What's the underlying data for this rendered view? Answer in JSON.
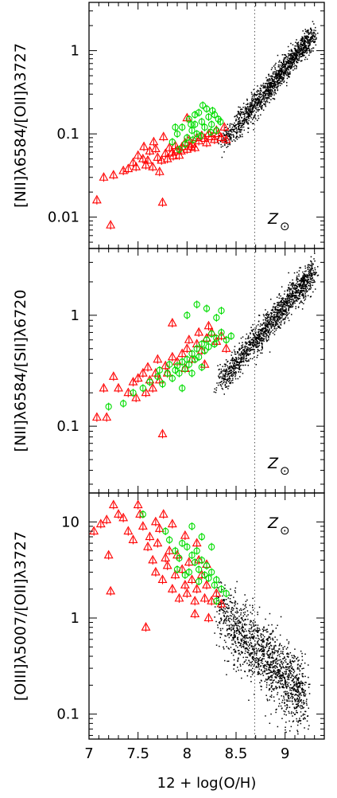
{
  "figure": {
    "xlabel": "12 + log(O/H)",
    "solar_label": "Z",
    "solar_symbol": "⊙",
    "colors": {
      "axes": "#000000",
      "sdss": "#000000",
      "red_series": "#ff0000",
      "green_series": "#00dd00",
      "solar_line": "#555555"
    }
  },
  "chart_data": [
    {
      "type": "scatter",
      "ylabel": "[NII]λ6584/[OII]λ3727",
      "yscale": "log",
      "xlim": [
        7.0,
        9.4
      ],
      "ylim": [
        0.0042,
        3.8
      ],
      "xticks": [
        7,
        7.5,
        8,
        8.5,
        9
      ],
      "xtick_labels": [
        "7",
        "7.5",
        "8",
        "8.5",
        "9"
      ],
      "yticks": [
        0.01,
        0.1,
        1
      ],
      "ytick_labels": [
        "0.01",
        "0.1",
        "1"
      ],
      "solar_line_x": 8.69,
      "cloud": {
        "x_range": [
          8.35,
          9.28
        ],
        "y_at_start": 0.075,
        "y_at_end": 1.6,
        "scatter_dex": 0.07
      },
      "series": [
        {
          "marker": "triangle",
          "points": [
            [
              7.08,
              0.016
            ],
            [
              7.22,
              0.008
            ],
            [
              7.15,
              0.03
            ],
            [
              7.25,
              0.032
            ],
            [
              7.4,
              0.038
            ],
            [
              7.45,
              0.045
            ],
            [
              7.5,
              0.055
            ],
            [
              7.55,
              0.05
            ],
            [
              7.6,
              0.048
            ],
            [
              7.62,
              0.062
            ],
            [
              7.65,
              0.04
            ],
            [
              7.7,
              0.052
            ],
            [
              7.72,
              0.035
            ],
            [
              7.75,
              0.015
            ],
            [
              7.78,
              0.058
            ],
            [
              7.8,
              0.05
            ],
            [
              7.82,
              0.068
            ],
            [
              7.85,
              0.06
            ],
            [
              7.88,
              0.072
            ],
            [
              7.9,
              0.064
            ],
            [
              7.92,
              0.055
            ],
            [
              7.95,
              0.07
            ],
            [
              7.98,
              0.078
            ],
            [
              8.0,
              0.065
            ],
            [
              8.02,
              0.085
            ],
            [
              8.05,
              0.075
            ],
            [
              8.08,
              0.068
            ],
            [
              8.1,
              0.09
            ],
            [
              8.12,
              0.082
            ],
            [
              8.15,
              0.095
            ],
            [
              8.18,
              0.088
            ],
            [
              8.2,
              0.078
            ],
            [
              8.22,
              0.1
            ],
            [
              8.25,
              0.092
            ],
            [
              8.28,
              0.085
            ],
            [
              8.3,
              0.11
            ],
            [
              8.32,
              0.1
            ],
            [
              8.35,
              0.09
            ],
            [
              8.38,
              0.12
            ],
            [
              8.4,
              0.085
            ],
            [
              7.58,
              0.042
            ],
            [
              7.68,
              0.066
            ],
            [
              7.74,
              0.048
            ],
            [
              7.86,
              0.054
            ],
            [
              7.94,
              0.062
            ],
            [
              8.04,
              0.07
            ],
            [
              7.56,
              0.07
            ],
            [
              7.48,
              0.04
            ],
            [
              7.35,
              0.036
            ],
            [
              7.66,
              0.08
            ],
            [
              7.76,
              0.092
            ],
            [
              8.0,
              0.155
            ]
          ]
        },
        {
          "marker": "circle",
          "points": [
            [
              7.85,
              0.08
            ],
            [
              7.9,
              0.1
            ],
            [
              7.95,
              0.12
            ],
            [
              8.0,
              0.09
            ],
            [
              8.02,
              0.15
            ],
            [
              8.05,
              0.11
            ],
            [
              8.08,
              0.13
            ],
            [
              8.1,
              0.1
            ],
            [
              8.12,
              0.18
            ],
            [
              8.15,
              0.14
            ],
            [
              8.18,
              0.12
            ],
            [
              8.2,
              0.2
            ],
            [
              8.22,
              0.16
            ],
            [
              8.25,
              0.13
            ],
            [
              8.28,
              0.17
            ],
            [
              8.3,
              0.11
            ],
            [
              8.32,
              0.15
            ],
            [
              7.98,
              0.075
            ],
            [
              8.06,
              0.085
            ],
            [
              8.14,
              0.095
            ],
            [
              8.24,
              0.105
            ],
            [
              7.92,
              0.065
            ],
            [
              8.16,
              0.22
            ],
            [
              8.08,
              0.17
            ],
            [
              8.26,
              0.19
            ],
            [
              8.34,
              0.14
            ],
            [
              7.88,
              0.12
            ],
            [
              8.04,
              0.13
            ]
          ]
        }
      ]
    },
    {
      "type": "scatter",
      "ylabel": "[NII]λ6584/[SII]λ6720",
      "yscale": "log",
      "xlim": [
        7.0,
        9.4
      ],
      "ylim": [
        0.025,
        4.0
      ],
      "xticks": [
        7,
        7.5,
        8,
        8.5,
        9
      ],
      "xtick_labels": [
        "7",
        "7.5",
        "8",
        "8.5",
        "9"
      ],
      "yticks": [
        0.1,
        1
      ],
      "ytick_labels": [
        "0.1",
        "1"
      ],
      "solar_line_x": 8.69,
      "cloud": {
        "x_range": [
          8.3,
          9.28
        ],
        "y_at_start": 0.23,
        "y_at_end": 2.5,
        "scatter_dex": 0.06
      },
      "series": [
        {
          "marker": "triangle",
          "points": [
            [
              7.08,
              0.12
            ],
            [
              7.18,
              0.12
            ],
            [
              7.15,
              0.22
            ],
            [
              7.25,
              0.28
            ],
            [
              7.3,
              0.22
            ],
            [
              7.4,
              0.2
            ],
            [
              7.45,
              0.25
            ],
            [
              7.5,
              0.27
            ],
            [
              7.55,
              0.3
            ],
            [
              7.6,
              0.34
            ],
            [
              7.62,
              0.26
            ],
            [
              7.65,
              0.22
            ],
            [
              7.68,
              0.3
            ],
            [
              7.7,
              0.4
            ],
            [
              7.72,
              0.26
            ],
            [
              7.75,
              0.085
            ],
            [
              7.78,
              0.35
            ],
            [
              7.8,
              0.3
            ],
            [
              7.85,
              0.42
            ],
            [
              7.9,
              0.38
            ],
            [
              7.95,
              0.45
            ],
            [
              8.0,
              0.5
            ],
            [
              8.02,
              0.6
            ],
            [
              8.05,
              0.4
            ],
            [
              8.1,
              0.55
            ],
            [
              8.12,
              0.7
            ],
            [
              8.15,
              0.48
            ],
            [
              8.2,
              0.62
            ],
            [
              8.22,
              0.8
            ],
            [
              8.25,
              0.7
            ],
            [
              8.3,
              0.58
            ],
            [
              8.35,
              0.65
            ],
            [
              8.4,
              0.5
            ],
            [
              7.85,
              0.85
            ],
            [
              7.58,
              0.2
            ],
            [
              7.48,
              0.18
            ],
            [
              7.98,
              0.33
            ],
            [
              8.18,
              0.36
            ]
          ]
        },
        {
          "marker": "circle",
          "points": [
            [
              7.2,
              0.15
            ],
            [
              7.35,
              0.16
            ],
            [
              7.45,
              0.2
            ],
            [
              7.55,
              0.22
            ],
            [
              7.62,
              0.25
            ],
            [
              7.7,
              0.28
            ],
            [
              7.75,
              0.24
            ],
            [
              7.8,
              0.3
            ],
            [
              7.85,
              0.27
            ],
            [
              7.88,
              0.32
            ],
            [
              7.9,
              0.35
            ],
            [
              7.92,
              0.3
            ],
            [
              7.95,
              0.38
            ],
            [
              7.98,
              0.33
            ],
            [
              8.0,
              0.4
            ],
            [
              8.02,
              0.36
            ],
            [
              8.05,
              0.45
            ],
            [
              8.08,
              0.4
            ],
            [
              8.1,
              0.5
            ],
            [
              8.12,
              0.42
            ],
            [
              8.15,
              0.55
            ],
            [
              8.18,
              0.48
            ],
            [
              8.2,
              0.6
            ],
            [
              8.22,
              0.52
            ],
            [
              8.25,
              0.68
            ],
            [
              8.28,
              0.55
            ],
            [
              8.3,
              0.62
            ],
            [
              8.35,
              0.7
            ],
            [
              8.4,
              0.6
            ],
            [
              8.45,
              0.65
            ],
            [
              8.1,
              1.25
            ],
            [
              8.2,
              1.15
            ],
            [
              8.35,
              1.1
            ],
            [
              8.3,
              0.95
            ],
            [
              8.0,
              1.0
            ],
            [
              7.95,
              0.22
            ],
            [
              8.05,
              0.3
            ],
            [
              8.15,
              0.34
            ],
            [
              7.82,
              0.36
            ],
            [
              7.72,
              0.32
            ]
          ]
        }
      ]
    },
    {
      "type": "scatter",
      "ylabel": "[OIII]λ5007/[OII]λ3727",
      "yscale": "log",
      "xlim": [
        7.0,
        9.4
      ],
      "ylim": [
        0.055,
        20.0
      ],
      "xticks": [
        7,
        7.5,
        8,
        8.5,
        9
      ],
      "xtick_labels": [
        "7",
        "7.5",
        "8",
        "8.5",
        "9"
      ],
      "yticks": [
        0.1,
        1,
        10
      ],
      "ytick_labels": [
        "0.1",
        "1",
        "10"
      ],
      "solar_line_x": 8.69,
      "cloud": {
        "x_range": [
          8.3,
          9.2
        ],
        "y_at_start": 1.2,
        "y_at_end": 0.15,
        "scatter_dex": 0.18
      },
      "series": [
        {
          "marker": "triangle",
          "points": [
            [
              7.05,
              8.0
            ],
            [
              7.12,
              9.5
            ],
            [
              7.18,
              10.5
            ],
            [
              7.25,
              15.0
            ],
            [
              7.3,
              12.0
            ],
            [
              7.35,
              11.0
            ],
            [
              7.2,
              4.5
            ],
            [
              7.22,
              1.9
            ],
            [
              7.4,
              8.0
            ],
            [
              7.45,
              6.5
            ],
            [
              7.5,
              15.0
            ],
            [
              7.52,
              12.0
            ],
            [
              7.55,
              9.0
            ],
            [
              7.58,
              0.8
            ],
            [
              7.6,
              5.5
            ],
            [
              7.62,
              7.0
            ],
            [
              7.65,
              4.0
            ],
            [
              7.68,
              3.0
            ],
            [
              7.7,
              6.0
            ],
            [
              7.72,
              8.5
            ],
            [
              7.75,
              2.5
            ],
            [
              7.78,
              4.2
            ],
            [
              7.8,
              3.5
            ],
            [
              7.82,
              5.0
            ],
            [
              7.85,
              2.0
            ],
            [
              7.88,
              2.8
            ],
            [
              7.9,
              4.5
            ],
            [
              7.92,
              1.6
            ],
            [
              7.95,
              3.2
            ],
            [
              7.98,
              2.2
            ],
            [
              8.0,
              1.8
            ],
            [
              8.02,
              3.8
            ],
            [
              8.05,
              2.5
            ],
            [
              8.08,
              1.5
            ],
            [
              8.1,
              2.0
            ],
            [
              8.12,
              4.0
            ],
            [
              8.15,
              2.8
            ],
            [
              8.18,
              1.6
            ],
            [
              8.2,
              2.2
            ],
            [
              8.25,
              1.5
            ],
            [
              8.3,
              1.8
            ],
            [
              8.35,
              1.4
            ],
            [
              7.76,
              12.0
            ],
            [
              8.08,
              1.1
            ],
            [
              8.22,
              1.0
            ],
            [
              7.85,
              9.5
            ],
            [
              7.98,
              7.2
            ],
            [
              8.1,
              6.0
            ],
            [
              8.2,
              3.6
            ],
            [
              7.68,
              10.0
            ]
          ]
        },
        {
          "marker": "circle",
          "points": [
            [
              7.55,
              12.0
            ],
            [
              7.78,
              8.0
            ],
            [
              7.82,
              6.5
            ],
            [
              7.88,
              5.0
            ],
            [
              7.92,
              4.2
            ],
            [
              7.95,
              6.0
            ],
            [
              8.0,
              5.5
            ],
            [
              8.02,
              3.0
            ],
            [
              8.05,
              4.5
            ],
            [
              8.08,
              3.8
            ],
            [
              8.1,
              5.0
            ],
            [
              8.12,
              3.2
            ],
            [
              8.15,
              4.0
            ],
            [
              8.18,
              2.8
            ],
            [
              8.2,
              3.5
            ],
            [
              8.22,
              2.6
            ],
            [
              8.25,
              3.0
            ],
            [
              8.28,
              2.2
            ],
            [
              8.3,
              2.5
            ],
            [
              8.35,
              2.0
            ],
            [
              8.4,
              1.8
            ],
            [
              8.05,
              9.0
            ],
            [
              8.15,
              7.0
            ],
            [
              8.25,
              5.5
            ],
            [
              8.3,
              1.5
            ],
            [
              7.98,
              2.8
            ],
            [
              8.12,
              2.4
            ],
            [
              7.9,
              3.2
            ]
          ]
        }
      ]
    }
  ]
}
